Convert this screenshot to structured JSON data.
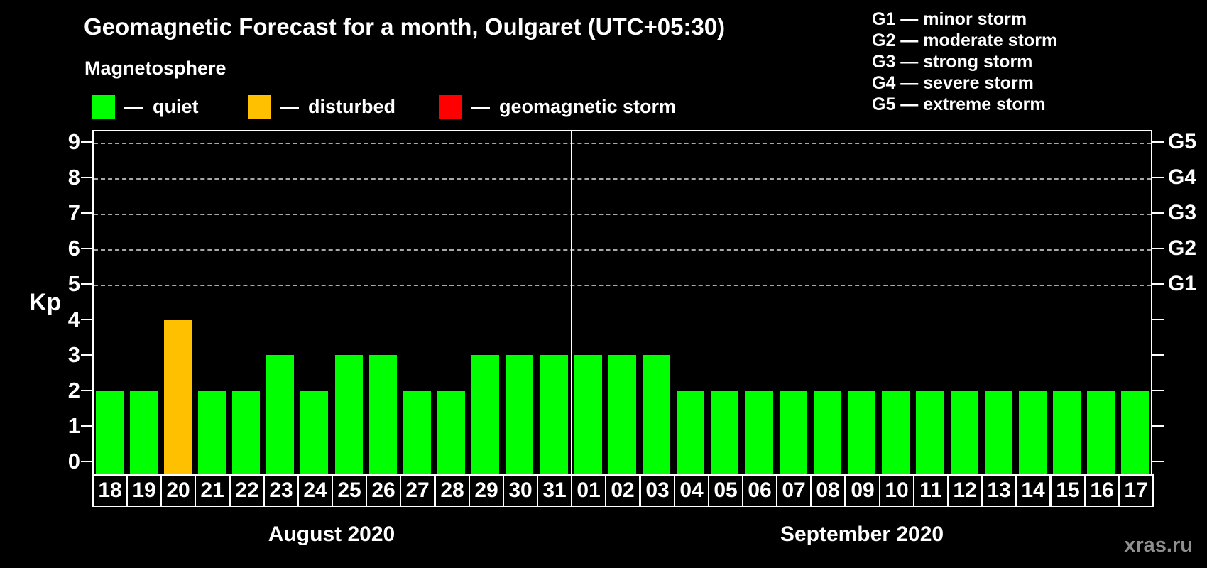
{
  "title": "Geomagnetic Forecast for a month, Oulgaret (UTC+05:30)",
  "subtitle": "Magnetosphere",
  "legend": {
    "dash": "—",
    "items": [
      {
        "label": "quiet",
        "state": "quiet",
        "color": "#00ff00"
      },
      {
        "label": "disturbed",
        "state": "disturbed",
        "color": "#ffc000"
      },
      {
        "label": "geomagnetic storm",
        "state": "storm",
        "color": "#ff0000"
      }
    ]
  },
  "g_legend": [
    {
      "code": "G1",
      "desc": "minor storm"
    },
    {
      "code": "G2",
      "desc": "moderate storm"
    },
    {
      "code": "G3",
      "desc": "strong storm"
    },
    {
      "code": "G4",
      "desc": "severe storm"
    },
    {
      "code": "G5",
      "desc": "extreme storm"
    }
  ],
  "watermark": "xras.ru",
  "chart_data": {
    "type": "bar",
    "ylabel": "Kp",
    "ylim": [
      0,
      9
    ],
    "yticks": [
      0,
      1,
      2,
      3,
      4,
      5,
      6,
      7,
      8,
      9
    ],
    "grid_levels": [
      5,
      6,
      7,
      8,
      9
    ],
    "grid_on": true,
    "legend_position": "top",
    "right_axis_labels": [
      {
        "kp": 5,
        "label": "G1"
      },
      {
        "kp": 6,
        "label": "G2"
      },
      {
        "kp": 7,
        "label": "G3"
      },
      {
        "kp": 8,
        "label": "G4"
      },
      {
        "kp": 9,
        "label": "G5"
      }
    ],
    "colors": {
      "quiet": "#00ff00",
      "disturbed": "#ffc000",
      "storm": "#ff0000"
    },
    "months": [
      {
        "label": "August 2020",
        "days": [
          {
            "day": "18",
            "kp": 2,
            "state": "quiet"
          },
          {
            "day": "19",
            "kp": 2,
            "state": "quiet"
          },
          {
            "day": "20",
            "kp": 4,
            "state": "disturbed"
          },
          {
            "day": "21",
            "kp": 2,
            "state": "quiet"
          },
          {
            "day": "22",
            "kp": 2,
            "state": "quiet"
          },
          {
            "day": "23",
            "kp": 3,
            "state": "quiet"
          },
          {
            "day": "24",
            "kp": 2,
            "state": "quiet"
          },
          {
            "day": "25",
            "kp": 3,
            "state": "quiet"
          },
          {
            "day": "26",
            "kp": 3,
            "state": "quiet"
          },
          {
            "day": "27",
            "kp": 2,
            "state": "quiet"
          },
          {
            "day": "28",
            "kp": 2,
            "state": "quiet"
          },
          {
            "day": "29",
            "kp": 3,
            "state": "quiet"
          },
          {
            "day": "30",
            "kp": 3,
            "state": "quiet"
          },
          {
            "day": "31",
            "kp": 3,
            "state": "quiet"
          }
        ]
      },
      {
        "label": "September 2020",
        "days": [
          {
            "day": "01",
            "kp": 3,
            "state": "quiet"
          },
          {
            "day": "02",
            "kp": 3,
            "state": "quiet"
          },
          {
            "day": "03",
            "kp": 3,
            "state": "quiet"
          },
          {
            "day": "04",
            "kp": 2,
            "state": "quiet"
          },
          {
            "day": "05",
            "kp": 2,
            "state": "quiet"
          },
          {
            "day": "06",
            "kp": 2,
            "state": "quiet"
          },
          {
            "day": "07",
            "kp": 2,
            "state": "quiet"
          },
          {
            "day": "08",
            "kp": 2,
            "state": "quiet"
          },
          {
            "day": "09",
            "kp": 2,
            "state": "quiet"
          },
          {
            "day": "10",
            "kp": 2,
            "state": "quiet"
          },
          {
            "day": "11",
            "kp": 2,
            "state": "quiet"
          },
          {
            "day": "12",
            "kp": 2,
            "state": "quiet"
          },
          {
            "day": "13",
            "kp": 2,
            "state": "quiet"
          },
          {
            "day": "14",
            "kp": 2,
            "state": "quiet"
          },
          {
            "day": "15",
            "kp": 2,
            "state": "quiet"
          },
          {
            "day": "16",
            "kp": 2,
            "state": "quiet"
          },
          {
            "day": "17",
            "kp": 2,
            "state": "quiet"
          }
        ]
      }
    ]
  }
}
